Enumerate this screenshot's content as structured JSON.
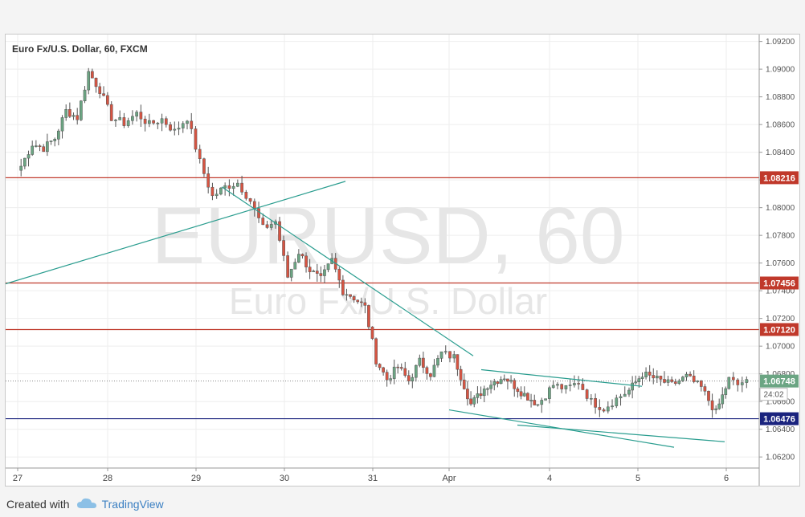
{
  "chart_data": {
    "type": "candlestick",
    "title": "Euro Fx/U.S. Dollar, 60, FXCM",
    "watermark": {
      "symbol": "EURUSD, 60",
      "name": "Euro Fx/U.S. Dollar"
    },
    "ylim": [
      1.0612,
      1.0925
    ],
    "y_ticks": [
      "1.09200",
      "1.09000",
      "1.08800",
      "1.08600",
      "1.08400",
      "1.08200",
      "1.08000",
      "1.07800",
      "1.07600",
      "1.07400",
      "1.07200",
      "1.07000",
      "1.06800",
      "1.06600",
      "1.06400",
      "1.06200"
    ],
    "x_labels": [
      "27",
      "28",
      "29",
      "30",
      "31",
      "Apr",
      "4",
      "5",
      "6"
    ],
    "colors": {
      "up": "#6ba583",
      "down": "#d75442",
      "resistance": "#c0392b",
      "support": "#1a237e",
      "trendline": "#2a9d8f"
    },
    "horizontal_levels": [
      {
        "price": 1.08216,
        "label": "1.08216",
        "color": "#c0392b"
      },
      {
        "price": 1.07456,
        "label": "1.07456",
        "color": "#c0392b"
      },
      {
        "price": 1.0712,
        "label": "1.07120",
        "color": "#c0392b"
      },
      {
        "price": 1.06476,
        "label": "1.06476",
        "color": "#1a237e"
      }
    ],
    "current_price": {
      "price": 1.06748,
      "label": "1.06748",
      "countdown": "24:02",
      "color": "#6ba583"
    },
    "grid": true,
    "trendlines": [
      {
        "from": {
          "x": "27",
          "y": 1.0745
        },
        "to": {
          "x": "31",
          "y": 1.0819
        }
      },
      {
        "from": {
          "x": "29",
          "y": 1.0815
        },
        "to": {
          "x": "Apr",
          "y": 1.0693
        }
      },
      {
        "from": {
          "x": "Apr",
          "y": 1.0683
        },
        "to": {
          "x": "5",
          "y": 1.0671
        }
      },
      {
        "from": {
          "x": "Apr",
          "y": 1.0654
        },
        "to": {
          "x": "5",
          "y": 1.0627
        }
      },
      {
        "from": {
          "x": "4",
          "y": 1.0643
        },
        "to": {
          "x": "6",
          "y": 1.0631
        }
      }
    ],
    "anchors": [
      {
        "x": "27",
        "y": 1.083
      },
      {
        "x": "27",
        "y": 1.0846
      },
      {
        "x": "27",
        "y": 1.0843
      },
      {
        "x": "27",
        "y": 1.085
      },
      {
        "x": "27",
        "y": 1.087
      },
      {
        "x": "27",
        "y": 1.0865
      },
      {
        "x": "27",
        "y": 1.0898
      },
      {
        "x": "27",
        "y": 1.0885
      },
      {
        "x": "28",
        "y": 1.0865
      },
      {
        "x": "28",
        "y": 1.0861
      },
      {
        "x": "28",
        "y": 1.0868
      },
      {
        "x": "28",
        "y": 1.086
      },
      {
        "x": "28",
        "y": 1.0864
      },
      {
        "x": "28",
        "y": 1.0855
      },
      {
        "x": "28",
        "y": 1.0865
      },
      {
        "x": "29",
        "y": 1.0833
      },
      {
        "x": "29",
        "y": 1.0808
      },
      {
        "x": "29",
        "y": 1.0815
      },
      {
        "x": "29",
        "y": 1.0818
      },
      {
        "x": "29",
        "y": 1.0805
      },
      {
        "x": "29",
        "y": 1.0785
      },
      {
        "x": "29",
        "y": 1.079
      },
      {
        "x": "30",
        "y": 1.075
      },
      {
        "x": "30",
        "y": 1.0768
      },
      {
        "x": "30",
        "y": 1.0755
      },
      {
        "x": "30",
        "y": 1.0748
      },
      {
        "x": "30",
        "y": 1.0762
      },
      {
        "x": "30",
        "y": 1.074
      },
      {
        "x": "30",
        "y": 1.0735
      },
      {
        "x": "30",
        "y": 1.0728
      },
      {
        "x": "31",
        "y": 1.069
      },
      {
        "x": "31",
        "y": 1.0676
      },
      {
        "x": "31",
        "y": 1.0685
      },
      {
        "x": "31",
        "y": 1.0675
      },
      {
        "x": "31",
        "y": 1.0689
      },
      {
        "x": "31",
        "y": 1.068
      },
      {
        "x": "31",
        "y": 1.0695
      },
      {
        "x": "Apr",
        "y": 1.0692
      },
      {
        "x": "Apr",
        "y": 1.0658
      },
      {
        "x": "Apr",
        "y": 1.0672
      },
      {
        "x": "Apr",
        "y": 1.0678
      },
      {
        "x": "Apr",
        "y": 1.0667
      },
      {
        "x": "Apr",
        "y": 1.0658
      },
      {
        "x": "4",
        "y": 1.0672
      },
      {
        "x": "4",
        "y": 1.0669
      },
      {
        "x": "4",
        "y": 1.0674
      },
      {
        "x": "4",
        "y": 1.066
      },
      {
        "x": "4",
        "y": 1.0655
      },
      {
        "x": "4",
        "y": 1.0662
      },
      {
        "x": "4",
        "y": 1.0668
      },
      {
        "x": "5",
        "y": 1.068
      },
      {
        "x": "5",
        "y": 1.0676
      },
      {
        "x": "5",
        "y": 1.0672
      },
      {
        "x": "5",
        "y": 1.0678
      },
      {
        "x": "5",
        "y": 1.067
      },
      {
        "x": "5",
        "y": 1.0652
      },
      {
        "x": "6",
        "y": 1.0676
      },
      {
        "x": "6",
        "y": 1.0672
      },
      {
        "x": "6",
        "y": 1.0676
      }
    ]
  },
  "footer": {
    "created_with": "Created with",
    "brand": "TradingView"
  }
}
